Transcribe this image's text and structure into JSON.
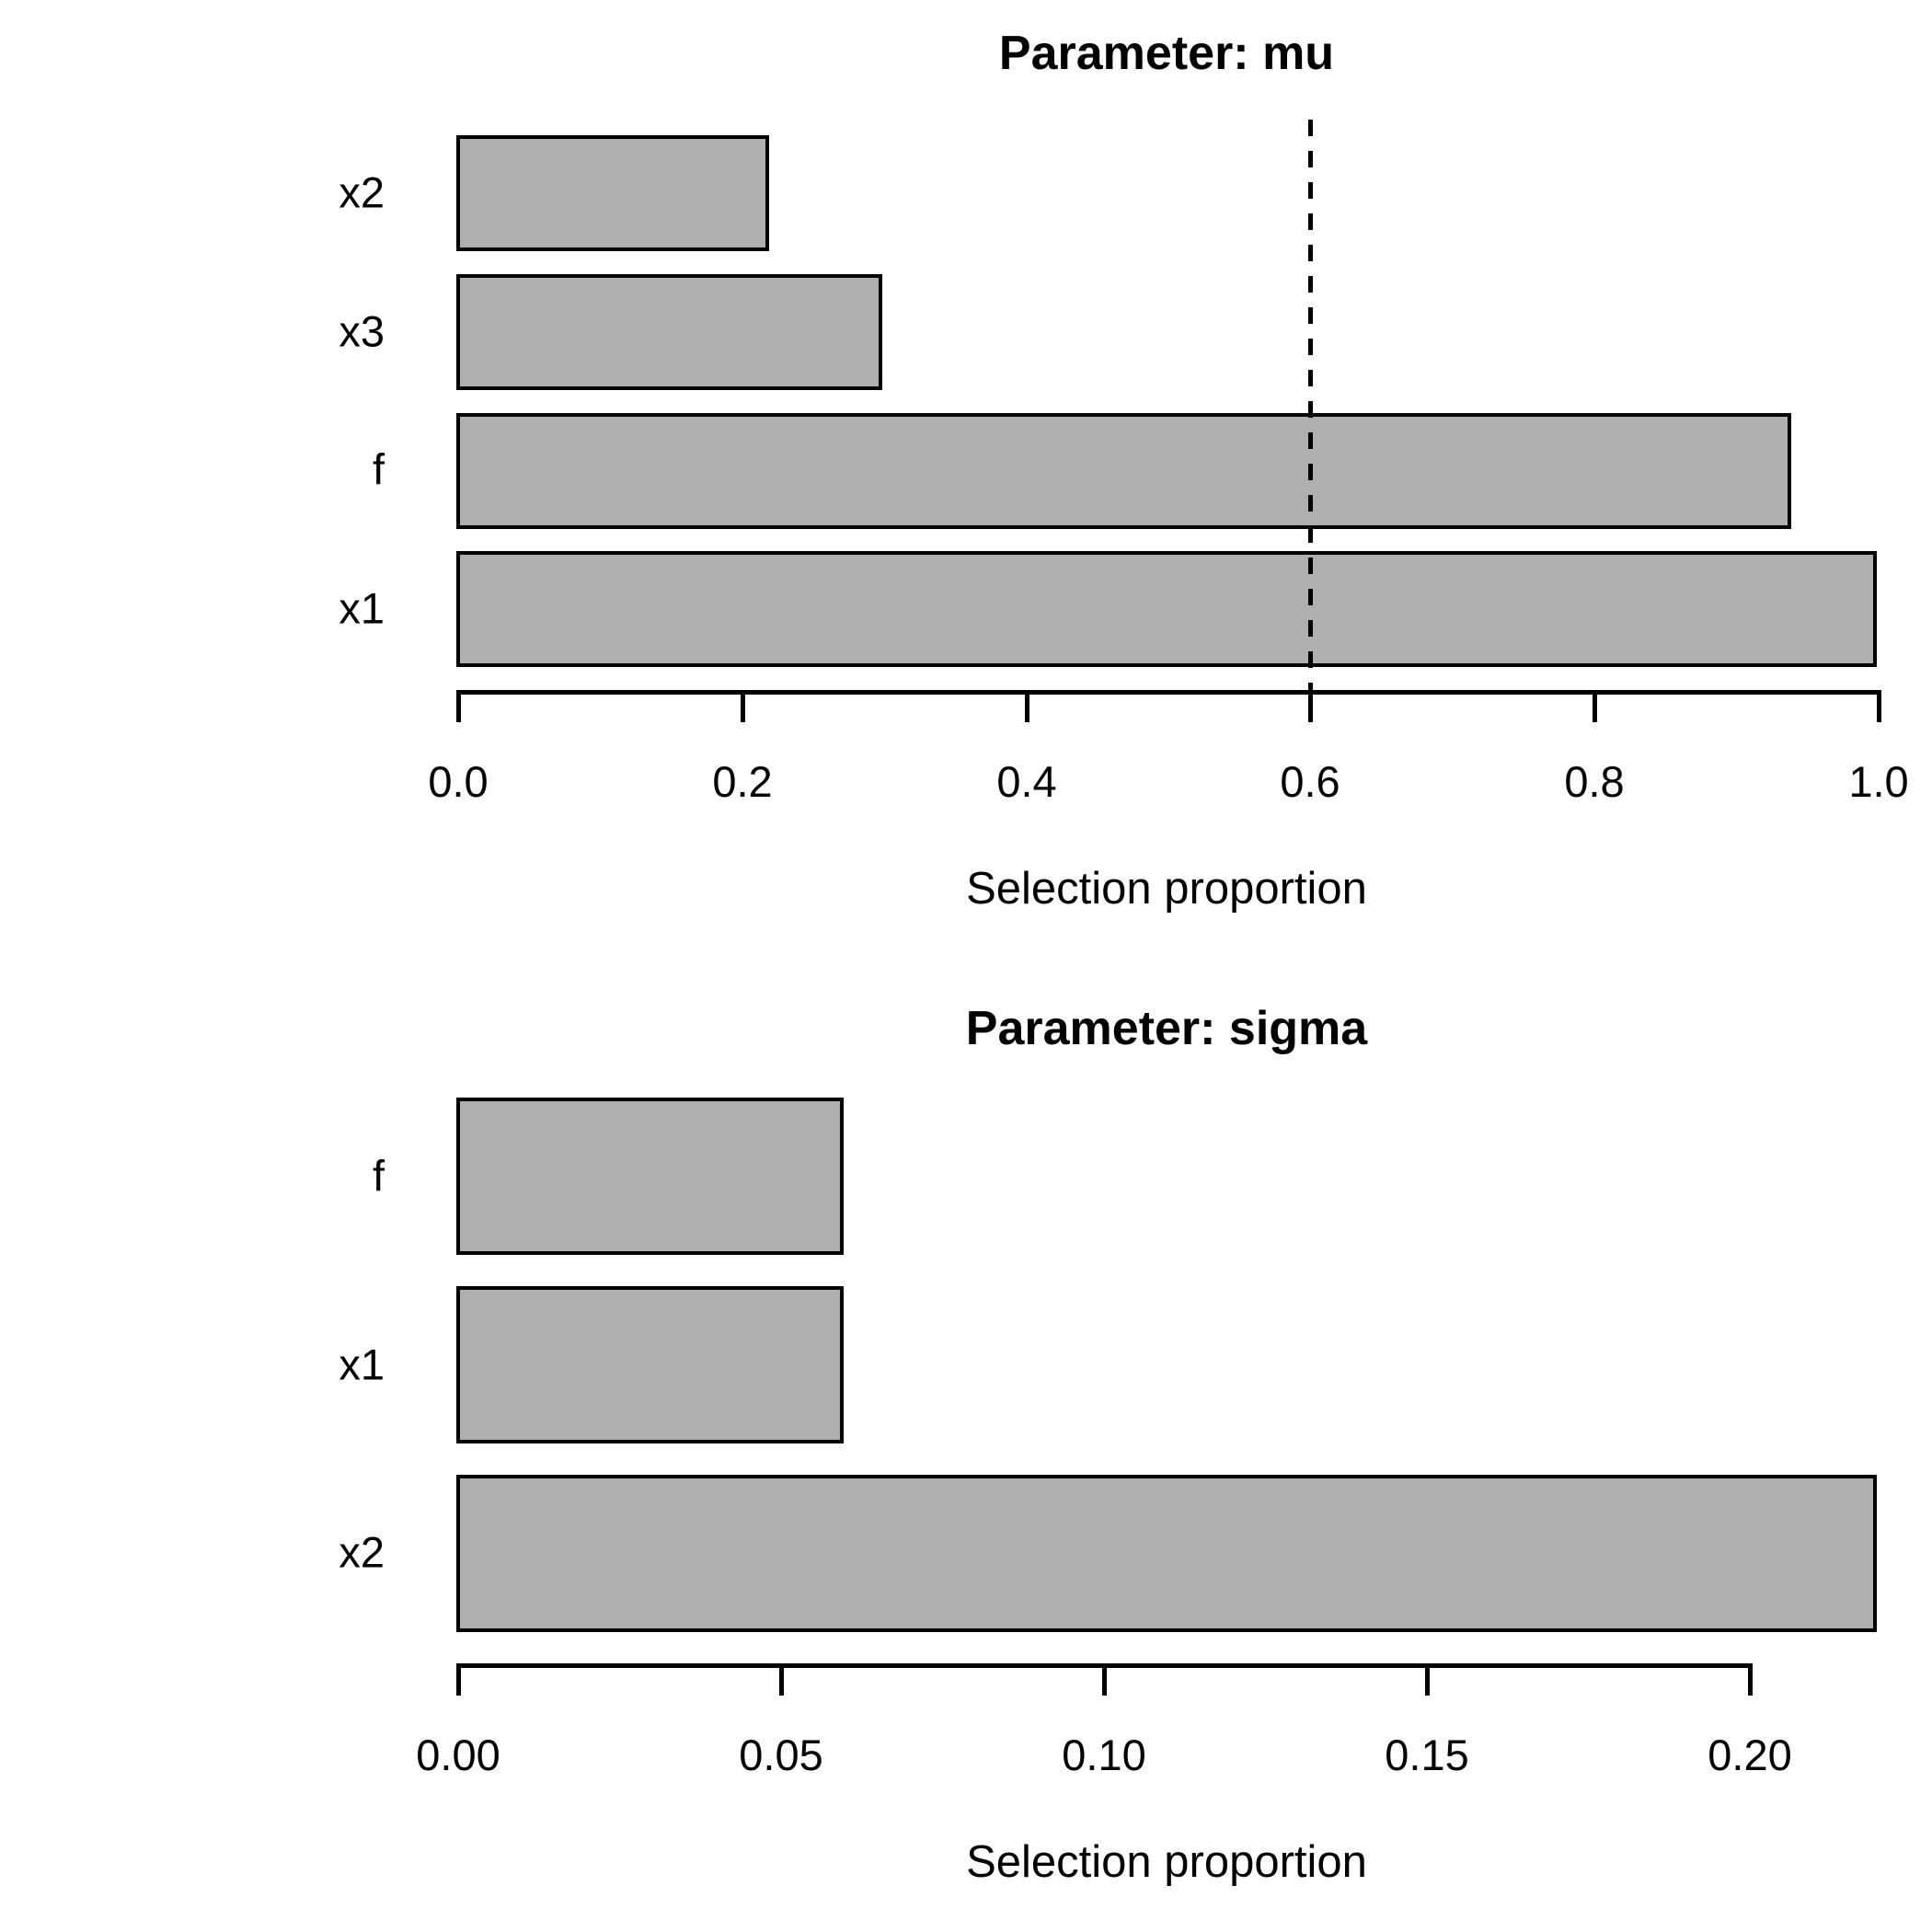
{
  "figure": {
    "background_color": "#FFFFFF",
    "bar_fill_color": "#AFAFAF",
    "bar_border_color": "#000000",
    "axis_color": "#000000",
    "text_color": "#000000"
  },
  "chart_data": [
    {
      "type": "bar",
      "orientation": "horizontal",
      "title": "Parameter: mu",
      "xlabel": "Selection proportion",
      "categories": [
        "x2",
        "x3",
        "f",
        "x1"
      ],
      "values": [
        0.22,
        0.3,
        0.94,
        1.0
      ],
      "xlim": [
        0,
        1.0
      ],
      "xticks": [
        0.0,
        0.2,
        0.4,
        0.6,
        0.8,
        1.0
      ],
      "xtick_labels": [
        "0.0",
        "0.2",
        "0.4",
        "0.6",
        "0.8",
        "1.0"
      ],
      "threshold": 0.6,
      "threshold_line_style": "dashed",
      "grid": "off",
      "legend": "none"
    },
    {
      "type": "bar",
      "orientation": "horizontal",
      "title": "Parameter: sigma",
      "xlabel": "Selection proportion",
      "categories": [
        "f",
        "x1",
        "x2"
      ],
      "values": [
        0.06,
        0.06,
        0.22
      ],
      "xlim": [
        0,
        0.22
      ],
      "xticks": [
        0.0,
        0.05,
        0.1,
        0.15,
        0.2
      ],
      "xtick_labels": [
        "0.00",
        "0.05",
        "0.10",
        "0.15",
        "0.20"
      ],
      "threshold": null,
      "threshold_line_style": "none",
      "grid": "off",
      "legend": "none"
    }
  ]
}
